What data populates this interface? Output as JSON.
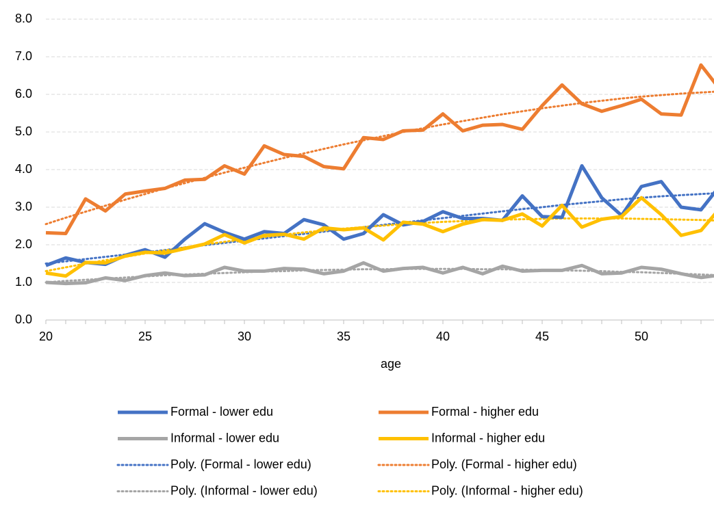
{
  "chart_data": {
    "type": "line",
    "x_label": "age",
    "x": [
      20,
      21,
      22,
      23,
      24,
      25,
      26,
      27,
      28,
      29,
      30,
      31,
      32,
      33,
      34,
      35,
      36,
      37,
      38,
      39,
      40,
      41,
      42,
      43,
      44,
      45,
      46,
      47,
      48,
      49,
      50,
      51,
      52,
      53,
      54
    ],
    "xlim": [
      20,
      53.66
    ],
    "xticks": [
      20,
      25,
      30,
      35,
      40,
      45,
      50
    ],
    "ylim": [
      0,
      8
    ],
    "yticks": [
      {
        "value": 0,
        "label": "0.0"
      },
      {
        "value": 1,
        "label": "1.0"
      },
      {
        "value": 2,
        "label": "2.0"
      },
      {
        "value": 3,
        "label": "3.0"
      },
      {
        "value": 4,
        "label": "4.0"
      },
      {
        "value": 5,
        "label": "5.0"
      },
      {
        "value": 6,
        "label": "6.0"
      },
      {
        "value": 7,
        "label": "7.0"
      },
      {
        "value": 8,
        "label": "8.0"
      }
    ],
    "grid": true,
    "legend": "bottom",
    "series": [
      {
        "name": "Formal - lower edu",
        "color": "#4472c4",
        "style": "solid",
        "values": [
          1.45,
          1.65,
          1.53,
          1.48,
          1.72,
          1.87,
          1.67,
          2.15,
          2.56,
          2.33,
          2.15,
          2.35,
          2.3,
          2.67,
          2.53,
          2.15,
          2.3,
          2.8,
          2.53,
          2.62,
          2.88,
          2.7,
          2.7,
          2.65,
          3.3,
          2.75,
          2.73,
          4.1,
          3.25,
          2.78,
          3.55,
          3.68,
          3.0,
          2.93,
          3.6
        ]
      },
      {
        "name": "Formal - higher edu",
        "color": "#ed7d31",
        "style": "solid",
        "values": [
          2.32,
          2.3,
          3.22,
          2.9,
          3.35,
          3.43,
          3.5,
          3.72,
          3.74,
          4.1,
          3.88,
          4.63,
          4.4,
          4.35,
          4.08,
          4.02,
          4.85,
          4.8,
          5.03,
          5.05,
          5.48,
          5.03,
          5.18,
          5.2,
          5.07,
          5.7,
          6.25,
          5.75,
          5.55,
          5.7,
          5.87,
          5.48,
          5.45,
          6.78,
          6.1
        ]
      },
      {
        "name": "Informal - lower edu",
        "color": "#a5a5a5",
        "style": "solid",
        "values": [
          1.0,
          0.97,
          0.99,
          1.12,
          1.05,
          1.18,
          1.25,
          1.18,
          1.2,
          1.4,
          1.3,
          1.3,
          1.37,
          1.35,
          1.23,
          1.3,
          1.52,
          1.3,
          1.37,
          1.4,
          1.25,
          1.4,
          1.23,
          1.43,
          1.3,
          1.32,
          1.32,
          1.45,
          1.23,
          1.25,
          1.4,
          1.35,
          1.23,
          1.13,
          1.2
        ]
      },
      {
        "name": "Informal - higher edu",
        "color": "#ffc000",
        "style": "solid",
        "values": [
          1.25,
          1.17,
          1.53,
          1.52,
          1.7,
          1.8,
          1.78,
          1.9,
          2.02,
          2.27,
          2.05,
          2.25,
          2.28,
          2.15,
          2.45,
          2.4,
          2.45,
          2.13,
          2.6,
          2.55,
          2.35,
          2.55,
          2.67,
          2.65,
          2.82,
          2.5,
          3.05,
          2.47,
          2.68,
          2.75,
          3.25,
          2.8,
          2.25,
          2.38,
          3.0
        ]
      },
      {
        "name": "Poly. (Formal - lower edu)",
        "color": "#4472c4",
        "style": "dotted",
        "values": [
          1.5,
          1.56,
          1.62,
          1.68,
          1.74,
          1.8,
          1.86,
          1.93,
          1.99,
          2.05,
          2.11,
          2.17,
          2.23,
          2.29,
          2.35,
          2.41,
          2.47,
          2.53,
          2.59,
          2.65,
          2.71,
          2.77,
          2.83,
          2.89,
          2.95,
          3.0,
          3.06,
          3.11,
          3.16,
          3.21,
          3.25,
          3.29,
          3.32,
          3.35,
          3.38
        ]
      },
      {
        "name": "Poly. (Formal - higher edu)",
        "color": "#ed7d31",
        "style": "dotted",
        "values": [
          2.55,
          2.72,
          2.88,
          3.04,
          3.2,
          3.35,
          3.5,
          3.64,
          3.78,
          3.92,
          4.05,
          4.18,
          4.31,
          4.43,
          4.55,
          4.67,
          4.78,
          4.89,
          5.0,
          5.1,
          5.2,
          5.29,
          5.38,
          5.47,
          5.55,
          5.63,
          5.7,
          5.77,
          5.83,
          5.89,
          5.94,
          5.98,
          6.02,
          6.05,
          6.08
        ]
      },
      {
        "name": "Poly. (Informal - lower edu)",
        "color": "#a5a5a5",
        "style": "dotted",
        "values": [
          1.0,
          1.04,
          1.07,
          1.1,
          1.13,
          1.16,
          1.19,
          1.21,
          1.23,
          1.25,
          1.27,
          1.29,
          1.3,
          1.32,
          1.33,
          1.34,
          1.35,
          1.35,
          1.36,
          1.36,
          1.36,
          1.36,
          1.35,
          1.35,
          1.34,
          1.33,
          1.32,
          1.31,
          1.3,
          1.28,
          1.27,
          1.25,
          1.23,
          1.21,
          1.19
        ]
      },
      {
        "name": "Poly. (Informal - higher edu)",
        "color": "#ffc000",
        "style": "dotted",
        "values": [
          1.3,
          1.4,
          1.5,
          1.59,
          1.68,
          1.77,
          1.85,
          1.93,
          2.01,
          2.08,
          2.15,
          2.21,
          2.27,
          2.33,
          2.38,
          2.43,
          2.47,
          2.51,
          2.55,
          2.58,
          2.61,
          2.63,
          2.65,
          2.67,
          2.68,
          2.69,
          2.7,
          2.7,
          2.7,
          2.7,
          2.69,
          2.68,
          2.67,
          2.66,
          2.64
        ]
      }
    ]
  }
}
